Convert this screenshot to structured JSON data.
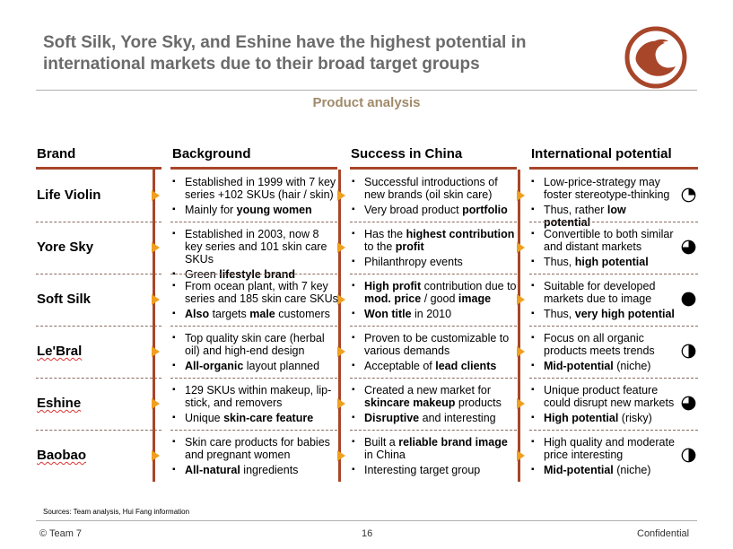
{
  "title": "Soft Silk, Yore Sky, and Eshine have the highest potential in international markets due to their broad target groups",
  "subtitle": "Product analysis",
  "columns": [
    "Brand",
    "Background",
    "Success in China",
    "International potential"
  ],
  "rows": [
    {
      "brand": "Life Violin",
      "background": [
        [
          "Established in 1999 with 7 key series +102 SKUs (hair / skin)",
          ""
        ],
        [
          "Mainly for ",
          "young women"
        ]
      ],
      "china": [
        [
          "Successful introductions of new brands (oil skin care)",
          ""
        ],
        [
          "Very broad product ",
          "portfolio"
        ]
      ],
      "intl": [
        [
          "Low-price-strategy may foster stereotype-thinking",
          ""
        ],
        [
          "Thus, rather ",
          "low potential"
        ]
      ],
      "rating": 0.25
    },
    {
      "brand": "Yore Sky",
      "background": [
        [
          "Established in 2003, now 8 key series and 101 skin care SKUs",
          ""
        ],
        [
          "Green ",
          "lifestyle brand"
        ]
      ],
      "china": [
        [
          "Has the ",
          "highest contribution",
          " to the ",
          "profit"
        ],
        [
          "Philanthropy events",
          ""
        ]
      ],
      "intl": [
        [
          "Convertible to both similar and distant markets",
          ""
        ],
        [
          "Thus, ",
          "high potential"
        ]
      ],
      "rating": 0.75
    },
    {
      "brand": "Soft Silk",
      "background": [
        [
          "From ocean plant, with 7 key series and 185 skin care SKUs",
          ""
        ],
        [
          "",
          "Also",
          " targets ",
          "male",
          " customers"
        ]
      ],
      "china": [
        [
          "",
          "High profit",
          " contribution  due to ",
          "mod. price",
          " / good ",
          "image"
        ],
        [
          "",
          "Won title",
          " in 2010"
        ]
      ],
      "intl": [
        [
          "Suitable for developed markets due to image",
          ""
        ],
        [
          "Thus, ",
          "very high potential"
        ]
      ],
      "rating": 1.0
    },
    {
      "brand": "Le'Bral",
      "background": [
        [
          "Top quality skin care (herbal oil) and high-end design",
          ""
        ],
        [
          "",
          "All-organic",
          " layout planned"
        ]
      ],
      "china": [
        [
          "Proven to be customizable to various demands",
          ""
        ],
        [
          "Acceptable of ",
          "lead clients"
        ]
      ],
      "intl": [
        [
          "Focus on all organic products meets trends",
          ""
        ],
        [
          "",
          "Mid-potential",
          " (niche)"
        ]
      ],
      "rating": 0.5
    },
    {
      "brand": "Eshine",
      "background": [
        [
          "129 SKUs within makeup, lip-stick, and removers",
          ""
        ],
        [
          "Unique ",
          "skin-care feature"
        ]
      ],
      "china": [
        [
          "Created a new market for ",
          "skincare makeup",
          " products"
        ],
        [
          "",
          "Disruptive",
          " and interesting"
        ]
      ],
      "intl": [
        [
          "Unique product feature could disrupt new markets",
          ""
        ],
        [
          "",
          "High potential",
          " (risky)"
        ]
      ],
      "rating": 0.75
    },
    {
      "brand": "Baobao",
      "background": [
        [
          "Skin care products for babies and pregnant women",
          ""
        ],
        [
          "",
          "All-natural",
          " ingredients"
        ]
      ],
      "china": [
        [
          "Built a ",
          "reliable brand image",
          " in China"
        ],
        [
          "Interesting target group",
          ""
        ]
      ],
      "intl": [
        [
          "High quality and moderate price interesting",
          ""
        ],
        [
          "",
          "Mid-potential",
          " (niche)"
        ]
      ],
      "rating": 0.5
    }
  ],
  "sources": "Sources: Team analysis, Hui Fang information",
  "footer": {
    "left": "© Team 7",
    "page": "16",
    "right": "Confidential"
  },
  "colors": {
    "accent": "#a8462a",
    "arrow": "#f0a020",
    "subtitle": "#a08a6a"
  }
}
